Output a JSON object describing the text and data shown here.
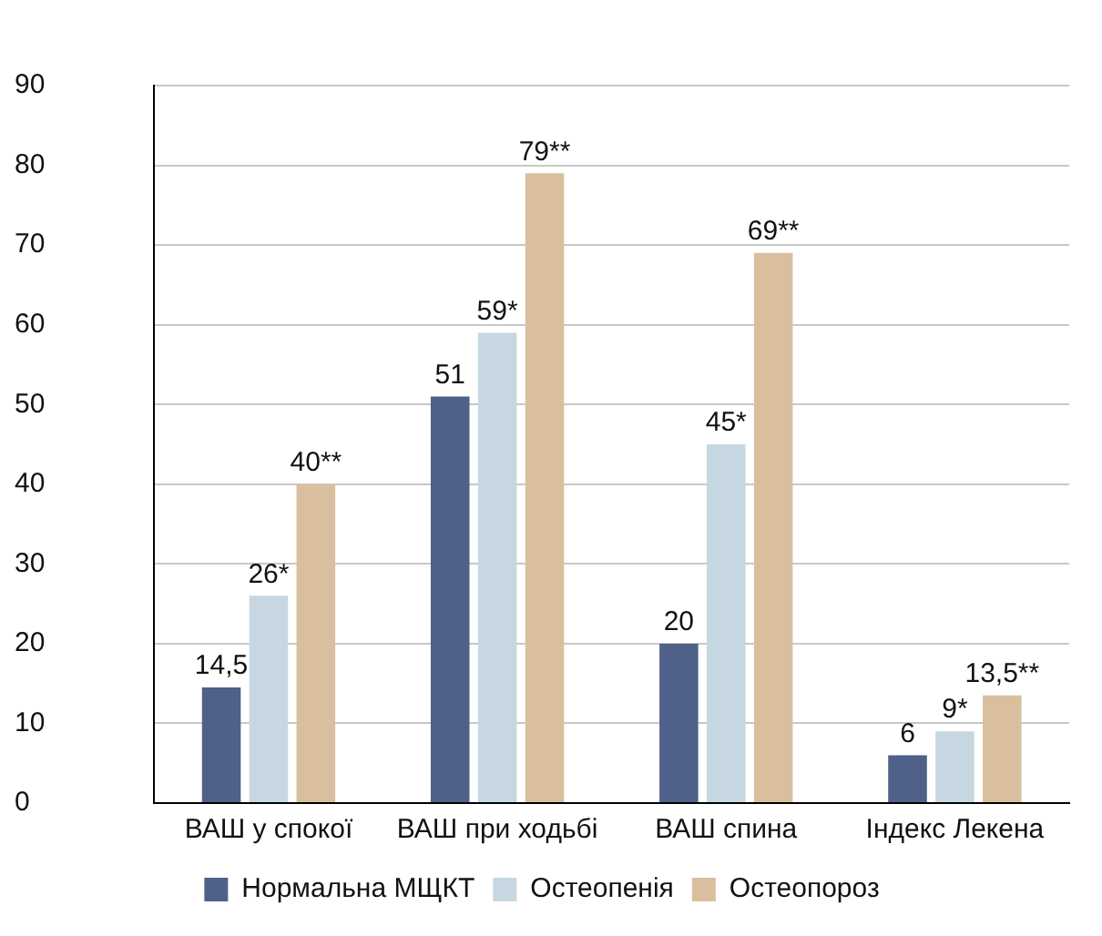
{
  "chart_data": {
    "type": "bar",
    "categories": [
      "ВАШ у спокої",
      "ВАШ при ходьбі",
      "ВАШ спина",
      "Індекс Лекена"
    ],
    "series": [
      {
        "name": "Нормальна МЩКТ",
        "color": "#4f6189",
        "values": [
          14.5,
          51,
          20,
          6
        ],
        "value_labels": [
          "14,5",
          "51",
          "20",
          "6"
        ]
      },
      {
        "name": "Остеопенія",
        "color": "#c6d7e1",
        "values": [
          26,
          59,
          45,
          9
        ],
        "value_labels": [
          "26*",
          "59*",
          "45*",
          "9*"
        ]
      },
      {
        "name": "Остеопороз",
        "color": "#d9bf9d",
        "values": [
          40,
          79,
          69,
          13.5
        ],
        "value_labels": [
          "40**",
          "79**",
          "69**",
          "13,5**"
        ]
      }
    ],
    "ylim": [
      0,
      90
    ],
    "yticks": [
      0,
      10,
      20,
      30,
      40,
      50,
      60,
      70,
      80,
      90
    ],
    "grid": "y",
    "legend": "bottom"
  }
}
